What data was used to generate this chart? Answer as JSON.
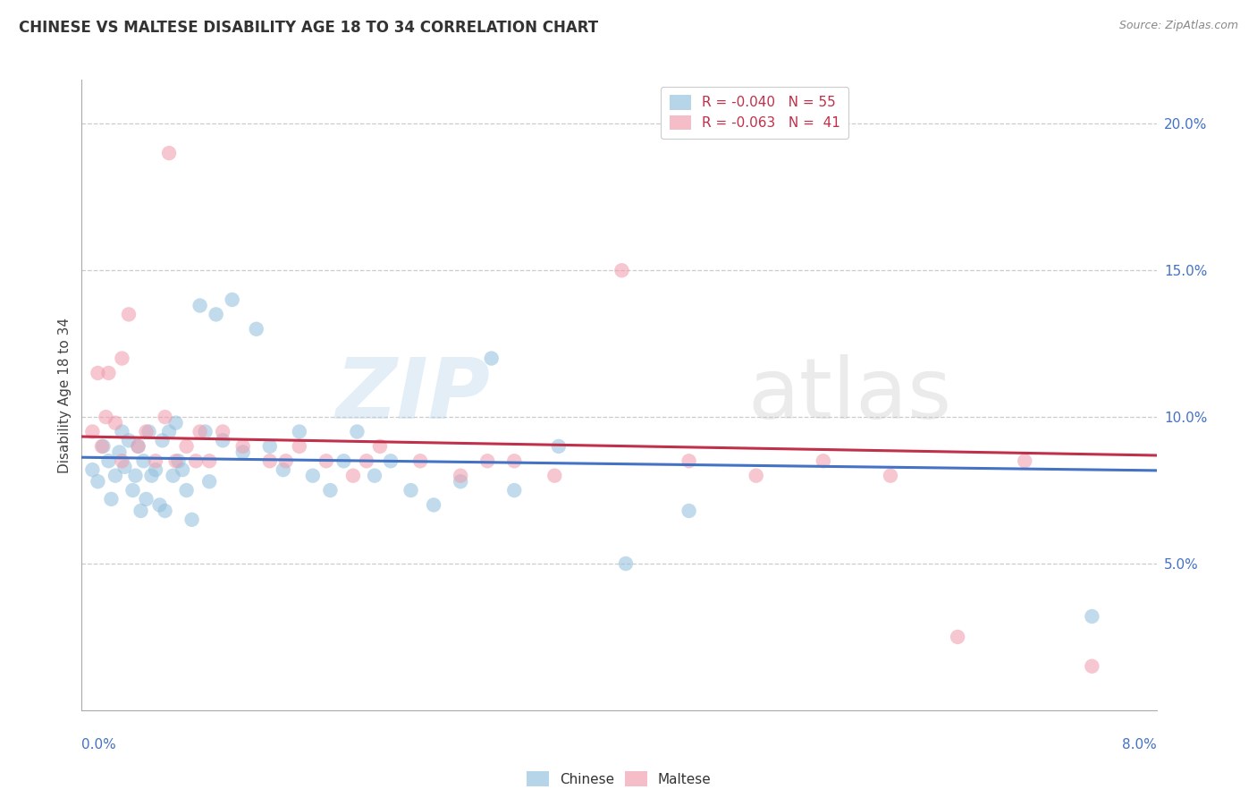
{
  "title": "CHINESE VS MALTESE DISABILITY AGE 18 TO 34 CORRELATION CHART",
  "source": "Source: ZipAtlas.com",
  "ylabel": "Disability Age 18 to 34",
  "xlim": [
    0.0,
    8.0
  ],
  "ylim": [
    0.0,
    21.5
  ],
  "ytick_values": [
    5.0,
    10.0,
    15.0,
    20.0
  ],
  "chinese_color": "#90bfdd",
  "maltese_color": "#f09aaa",
  "chinese_line_color": "#4472c4",
  "maltese_line_color": "#c0304a",
  "chinese_r": -0.04,
  "maltese_r": -0.063,
  "chinese_n": 55,
  "maltese_n": 41,
  "chinese_x": [
    0.08,
    0.12,
    0.16,
    0.2,
    0.22,
    0.25,
    0.28,
    0.3,
    0.32,
    0.35,
    0.38,
    0.4,
    0.42,
    0.44,
    0.46,
    0.48,
    0.5,
    0.52,
    0.55,
    0.58,
    0.6,
    0.62,
    0.65,
    0.68,
    0.7,
    0.72,
    0.75,
    0.78,
    0.82,
    0.88,
    0.92,
    0.95,
    1.0,
    1.05,
    1.12,
    1.2,
    1.3,
    1.4,
    1.5,
    1.62,
    1.72,
    1.85,
    1.95,
    2.05,
    2.18,
    2.3,
    2.45,
    2.62,
    2.82,
    3.05,
    3.22,
    3.55,
    4.05,
    4.52,
    7.52
  ],
  "chinese_y": [
    8.2,
    7.8,
    9.0,
    8.5,
    7.2,
    8.0,
    8.8,
    9.5,
    8.3,
    9.2,
    7.5,
    8.0,
    9.0,
    6.8,
    8.5,
    7.2,
    9.5,
    8.0,
    8.2,
    7.0,
    9.2,
    6.8,
    9.5,
    8.0,
    9.8,
    8.5,
    8.2,
    7.5,
    6.5,
    13.8,
    9.5,
    7.8,
    13.5,
    9.2,
    14.0,
    8.8,
    13.0,
    9.0,
    8.2,
    9.5,
    8.0,
    7.5,
    8.5,
    9.5,
    8.0,
    8.5,
    7.5,
    7.0,
    7.8,
    12.0,
    7.5,
    9.0,
    5.0,
    6.8,
    3.2
  ],
  "maltese_x": [
    0.08,
    0.12,
    0.18,
    0.25,
    0.3,
    0.35,
    0.42,
    0.48,
    0.55,
    0.62,
    0.7,
    0.78,
    0.88,
    0.95,
    1.05,
    1.2,
    1.4,
    1.62,
    1.82,
    2.02,
    2.22,
    2.52,
    2.82,
    3.02,
    3.52,
    4.02,
    4.52,
    5.02,
    5.52,
    6.02,
    6.52,
    7.02,
    7.52,
    3.22,
    2.12,
    1.52,
    0.85,
    0.65,
    0.15,
    0.2,
    0.3
  ],
  "maltese_y": [
    9.5,
    11.5,
    10.0,
    9.8,
    12.0,
    13.5,
    9.0,
    9.5,
    8.5,
    10.0,
    8.5,
    9.0,
    9.5,
    8.5,
    9.5,
    9.0,
    8.5,
    9.0,
    8.5,
    8.0,
    9.0,
    8.5,
    8.0,
    8.5,
    8.0,
    15.0,
    8.5,
    8.0,
    8.5,
    8.0,
    2.5,
    8.5,
    1.5,
    8.5,
    8.5,
    8.5,
    8.5,
    19.0,
    9.0,
    11.5,
    8.5
  ]
}
